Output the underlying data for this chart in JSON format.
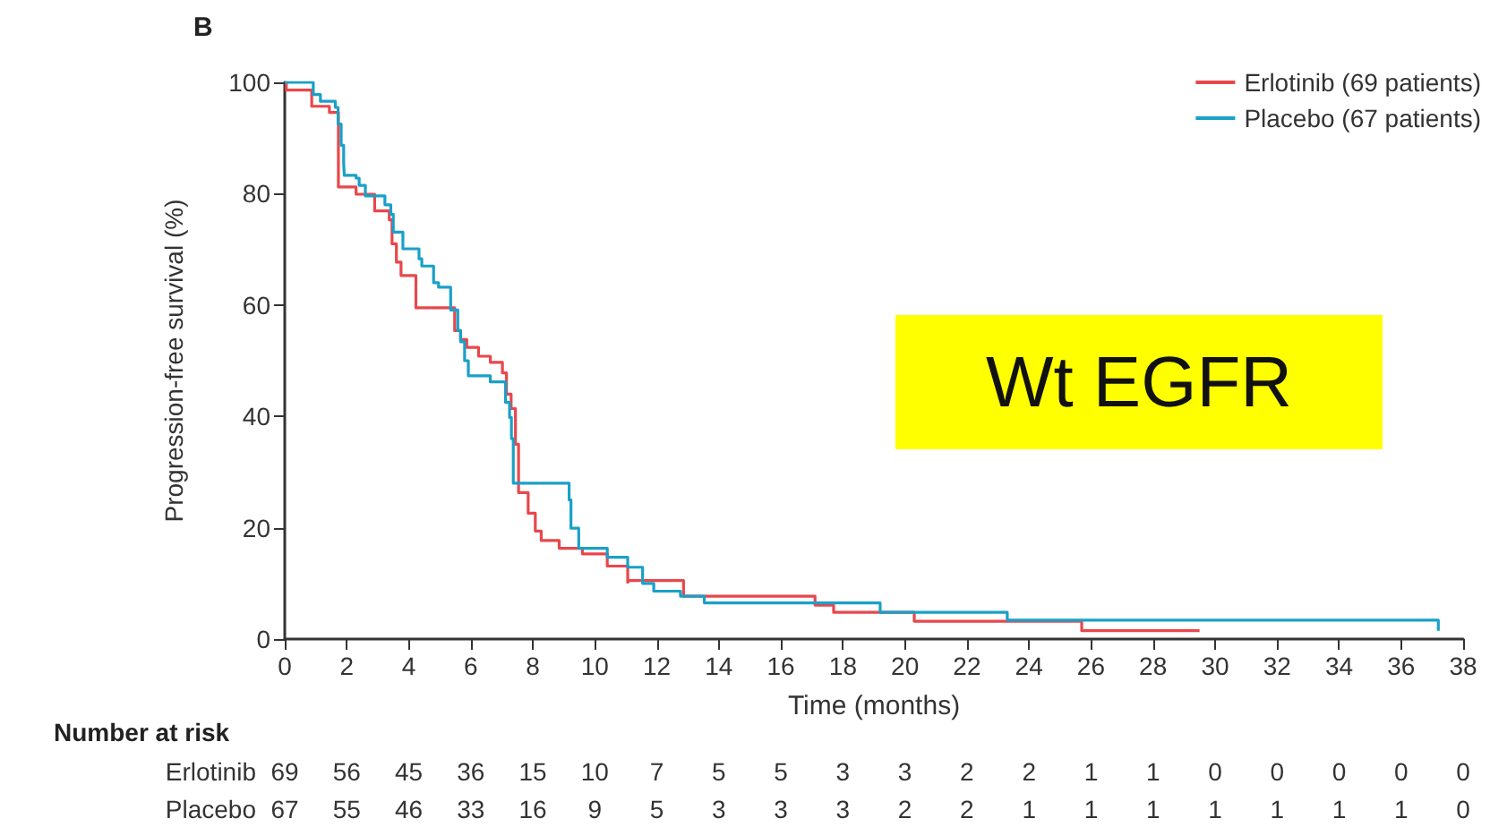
{
  "chart_data": {
    "type": "step",
    "xlabel": "Time (months)",
    "ylabel": "Progression-free survival (%)",
    "xlim": [
      0,
      38
    ],
    "xticks": [
      0,
      2,
      4,
      6,
      8,
      10,
      12,
      14,
      16,
      18,
      20,
      22,
      24,
      26,
      28,
      30,
      32,
      34,
      36,
      38
    ],
    "ylim": [
      0,
      100
    ],
    "yticks": [
      0,
      20,
      40,
      60,
      80,
      100
    ],
    "grid": false,
    "legend": "top right",
    "marker": "none",
    "line_style": "solid",
    "annotations": [
      "B",
      "Wt EGFR",
      "Number at risk",
      "Erlotinib 69 56 45 36 15 10 7 5 5 3 3 2 2 1 1 0 0 0 0 0",
      "Placebo 67 55 46 33 16 9 5 3 3 3 2 2 1 1 1 1 1 1 1 0"
    ],
    "series": [
      {
        "name": "Erlotinib (69 patients)",
        "color": "#e8474c",
        "x": [
          0,
          0.05,
          0.87,
          1.44,
          1.73,
          2.3,
          2.9,
          3.37,
          3.46,
          3.6,
          3.75,
          4.23,
          5.48,
          5.67,
          5.87,
          6.25,
          6.63,
          7.02,
          7.15,
          7.3,
          7.44,
          7.54,
          7.85,
          8.08,
          8.27,
          8.85,
          9.6,
          10.4,
          11.06,
          11.1,
          12.86,
          13.05,
          17.1,
          17.7,
          20.3,
          25.7,
          29.5
        ],
        "values": [
          100,
          98.6,
          95.7,
          94.6,
          81.2,
          79.9,
          76.9,
          75.3,
          71,
          67.7,
          65.3,
          59.5,
          55.4,
          53.8,
          52.4,
          50.8,
          49.7,
          47.8,
          44,
          41.4,
          35,
          26.3,
          22.6,
          19.4,
          17.7,
          16.3,
          15.3,
          13.1,
          10.2,
          10.5,
          7.7,
          7.7,
          6.1,
          4.8,
          3.2,
          1.5,
          1.5
        ]
      },
      {
        "name": "Placebo (67 patients)",
        "color": "#1aa0c8",
        "x": [
          0,
          0.92,
          1.15,
          1.63,
          1.72,
          1.82,
          1.9,
          1.92,
          2.3,
          2.4,
          2.6,
          3.23,
          3.42,
          3.5,
          3.81,
          4.33,
          4.42,
          4.8,
          4.96,
          5.35,
          5.58,
          5.67,
          5.8,
          5.92,
          6.63,
          7.12,
          7.25,
          7.31,
          7.37,
          9.17,
          9.23,
          9.48,
          10.4,
          11.06,
          11.54,
          11.9,
          12.76,
          13.53,
          19.2,
          23.3,
          37.2
        ],
        "values": [
          100,
          97.8,
          96.6,
          95.5,
          92.5,
          88.7,
          85.5,
          83.3,
          82.8,
          81.5,
          79.6,
          78,
          76.3,
          73.1,
          70.1,
          68.3,
          67,
          64,
          63.2,
          59.1,
          55.4,
          53.4,
          50,
          47.3,
          46.2,
          42.5,
          39.8,
          36,
          28,
          25,
          19.9,
          16.3,
          14.7,
          12.9,
          10,
          8.6,
          7.7,
          6.5,
          4.8,
          3.4,
          1.5
        ]
      }
    ]
  }
}
